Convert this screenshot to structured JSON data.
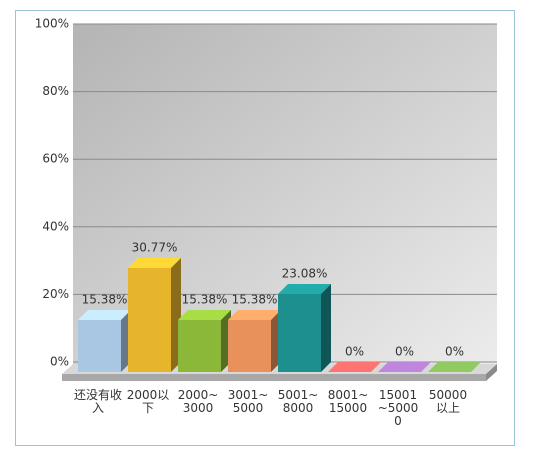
{
  "chart_data": {
    "type": "bar3d",
    "categories": [
      "还没有收入",
      "2000以下",
      "2000~3000",
      "3001~5000",
      "5001~8000",
      "8001~15000",
      "15001~50000",
      "50000以上"
    ],
    "values": [
      15.38,
      30.77,
      15.38,
      15.38,
      23.08,
      0,
      0,
      0
    ],
    "value_labels": [
      "15.38%",
      "30.77%",
      "15.38%",
      "15.38%",
      "23.08%",
      "0%",
      "0%",
      "0%"
    ],
    "colors": [
      "#a9c6e2",
      "#e6b52c",
      "#8cb83a",
      "#e8915a",
      "#1d8f8f",
      "#e06060",
      "#a070b8",
      "#78a850"
    ],
    "ylim": [
      0,
      100
    ],
    "yticks": [
      {
        "value": 0,
        "label": "0%"
      },
      {
        "value": 20,
        "label": "20%"
      },
      {
        "value": 40,
        "label": "40%"
      },
      {
        "value": 60,
        "label": "60%"
      },
      {
        "value": 80,
        "label": "80%"
      },
      {
        "value": 100,
        "label": "100%"
      }
    ],
    "grid": true
  }
}
